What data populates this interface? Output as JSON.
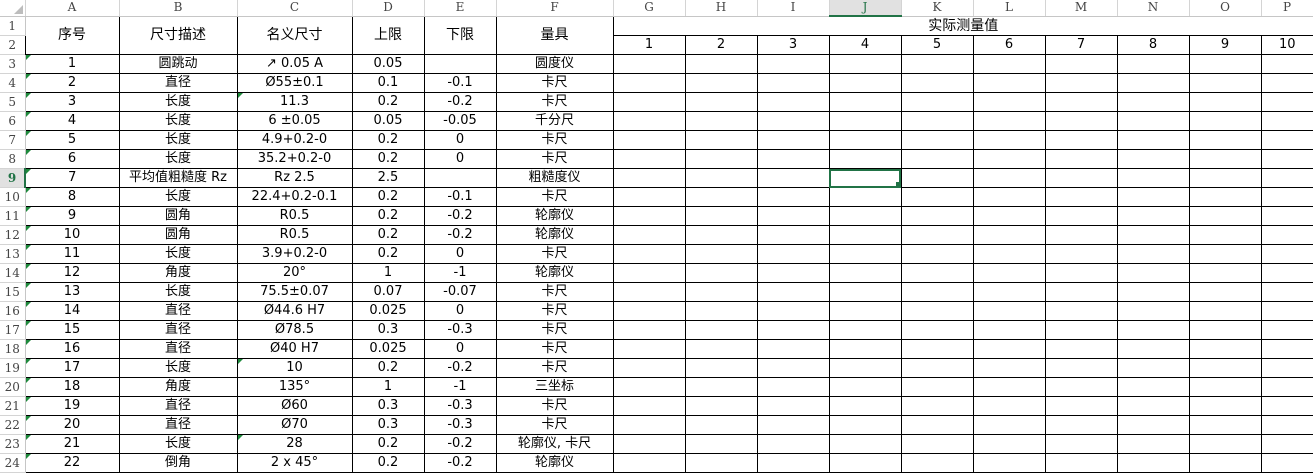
{
  "column_headers": [
    "A",
    "B",
    "C",
    "D",
    "E",
    "F",
    "G",
    "H",
    "I",
    "J",
    "K",
    "L",
    "M",
    "N",
    "O",
    "P"
  ],
  "row_numbers": [
    "1",
    "2",
    "3",
    "4",
    "5",
    "6",
    "7",
    "8",
    "9",
    "10",
    "11",
    "12",
    "13",
    "14",
    "15",
    "16",
    "17",
    "18",
    "19",
    "20",
    "21",
    "22",
    "23",
    "24"
  ],
  "selected_cell": "J9",
  "selection_color": "#217346",
  "comment_indicator_color": "#1e8a3c",
  "table_headers": [
    "序号",
    "尺寸描述",
    "名义尺寸",
    "上限",
    "下限",
    "量具"
  ],
  "measurement_header": "实际测量值",
  "measurement_columns": [
    "1",
    "2",
    "3",
    "4",
    "5",
    "6",
    "7",
    "8",
    "9",
    "10"
  ],
  "rows": [
    [
      "1",
      "圆跳动",
      "↗ 0.05 A",
      "0.05",
      "",
      "圆度仪"
    ],
    [
      "2",
      "直径",
      "Ø55±0.1",
      "0.1",
      "-0.1",
      "卡尺"
    ],
    [
      "3",
      "长度",
      "11.3",
      "0.2",
      "-0.2",
      "卡尺"
    ],
    [
      "4",
      "长度",
      "6 ±0.05",
      "0.05",
      "-0.05",
      "千分尺"
    ],
    [
      "5",
      "长度",
      "4.9+0.2-0",
      "0.2",
      "0",
      "卡尺"
    ],
    [
      "6",
      "长度",
      "35.2+0.2-0",
      "0.2",
      "0",
      "卡尺"
    ],
    [
      "7",
      "平均值粗糙度 Rz",
      "Rz 2.5",
      "2.5",
      "",
      "粗糙度仪"
    ],
    [
      "8",
      "长度",
      "22.4+0.2-0.1",
      "0.2",
      "-0.1",
      "卡尺"
    ],
    [
      "9",
      "圆角",
      "R0.5",
      "0.2",
      "-0.2",
      "轮廓仪"
    ],
    [
      "10",
      "圆角",
      "R0.5",
      "0.2",
      "-0.2",
      "轮廓仪"
    ],
    [
      "11",
      "长度",
      "3.9+0.2-0",
      "0.2",
      "0",
      "卡尺"
    ],
    [
      "12",
      "角度",
      "20°",
      "1",
      "-1",
      "轮廓仪"
    ],
    [
      "13",
      "长度",
      "75.5±0.07",
      "0.07",
      "-0.07",
      "卡尺"
    ],
    [
      "14",
      "直径",
      "Ø44.6 H7",
      "0.025",
      "0",
      "卡尺"
    ],
    [
      "15",
      "直径",
      "Ø78.5",
      "0.3",
      "-0.3",
      "卡尺"
    ],
    [
      "16",
      "直径",
      "Ø40 H7",
      "0.025",
      "0",
      "卡尺"
    ],
    [
      "17",
      "长度",
      "10",
      "0.2",
      "-0.2",
      "卡尺"
    ],
    [
      "18",
      "角度",
      "135°",
      "1",
      "-1",
      "三坐标"
    ],
    [
      "19",
      "直径",
      "Ø60",
      "0.3",
      "-0.3",
      "卡尺"
    ],
    [
      "20",
      "直径",
      "Ø70",
      "0.3",
      "-0.3",
      "卡尺"
    ],
    [
      "21",
      "长度",
      "28",
      "0.2",
      "-0.2",
      "轮廓仪, 卡尺"
    ],
    [
      "22",
      "倒角",
      "2 x 45°",
      "0.2",
      "-0.2",
      "轮廓仪"
    ]
  ]
}
